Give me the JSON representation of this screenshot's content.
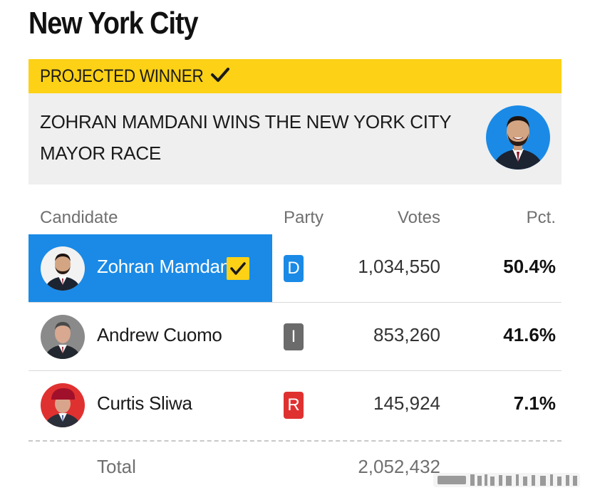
{
  "page": {
    "title": "New York City"
  },
  "banner": {
    "label": "PROJECTED WINNER"
  },
  "headline": {
    "text": "ZOHRAN MAMDANI WINS THE NEW YORK CITY MAYOR RACE"
  },
  "table": {
    "headers": {
      "candidate": "Candidate",
      "party": "Party",
      "votes": "Votes",
      "pct": "Pct."
    },
    "rows": [
      {
        "name": "Zohran Mamdani",
        "party": "D",
        "party_color": "#1a8ae6",
        "votes": "1,034,550",
        "pct": "50.4%",
        "winner": true
      },
      {
        "name": "Andrew Cuomo",
        "party": "I",
        "party_color": "#6b6b6b",
        "votes": "853,260",
        "pct": "41.6%",
        "winner": false
      },
      {
        "name": "Curtis Sliwa",
        "party": "R",
        "party_color": "#e03131",
        "votes": "145,924",
        "pct": "7.1%",
        "winner": false
      }
    ],
    "total": {
      "label": "Total",
      "votes": "2,052,432"
    }
  },
  "colors": {
    "accent_yellow": "#fcd116",
    "winner_blue": "#1a8ae6",
    "headline_bg": "#efefef"
  },
  "icons": [
    "checkmark-icon",
    "winner-check-icon",
    "candidate-avatar"
  ]
}
